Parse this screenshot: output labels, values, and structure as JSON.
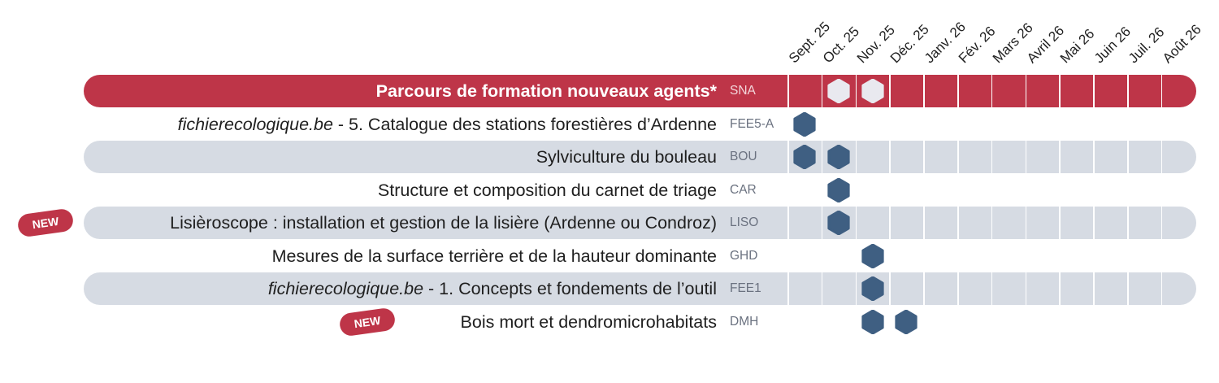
{
  "months": [
    "Sept. 25",
    "Oct. 25",
    "Nov. 25",
    "Déc. 25",
    "Janv. 26",
    "Fév. 26",
    "Mars 26",
    "Avril 26",
    "Mai 26",
    "Juin 26",
    "Juil. 26",
    "Août 26"
  ],
  "courses": [
    {
      "title": "Parcours de formation nouveaux agents*",
      "code": "SNA",
      "highlight": true,
      "band": "red",
      "sessions": [
        1,
        2
      ],
      "hex_color": "#e9e9ef"
    },
    {
      "title_italic": "fichierecologique.be",
      "title": " - 5. Catalogue des stations forestières d’Ardenne",
      "code": "FEE5-A",
      "band": "none",
      "sessions": [
        0
      ]
    },
    {
      "title": "Sylviculture du bouleau",
      "code": "BOU",
      "band": "grey",
      "sessions": [
        0,
        1
      ]
    },
    {
      "title": "Structure et composition du carnet de triage",
      "code": "CAR",
      "band": "none",
      "sessions": [
        1
      ]
    },
    {
      "title": "Lisièroscope : installation et gestion de la lisière (Ardenne ou Condroz)",
      "code": "LISO",
      "band": "grey",
      "sessions": [
        1
      ],
      "new": true
    },
    {
      "title": "Mesures de la surface terrière et de la hauteur dominante",
      "code": "GHD",
      "band": "none",
      "sessions": [
        2
      ]
    },
    {
      "title_italic": "fichierecologique.be",
      "title": " - 1. Concepts et fondements de l’outil",
      "code": "FEE1",
      "band": "grey",
      "sessions": [
        2
      ]
    },
    {
      "title": "Bois mort et dendromicrohabitats",
      "code": "DMH",
      "band": "none",
      "sessions": [
        2,
        3
      ],
      "new": true
    }
  ],
  "new_label": "NEW",
  "colors": {
    "accent": "#be3548",
    "band_grey": "#d6dbe3",
    "hex": "#3f5f82",
    "text": "#1f1f1f",
    "code": "#6b7280"
  }
}
